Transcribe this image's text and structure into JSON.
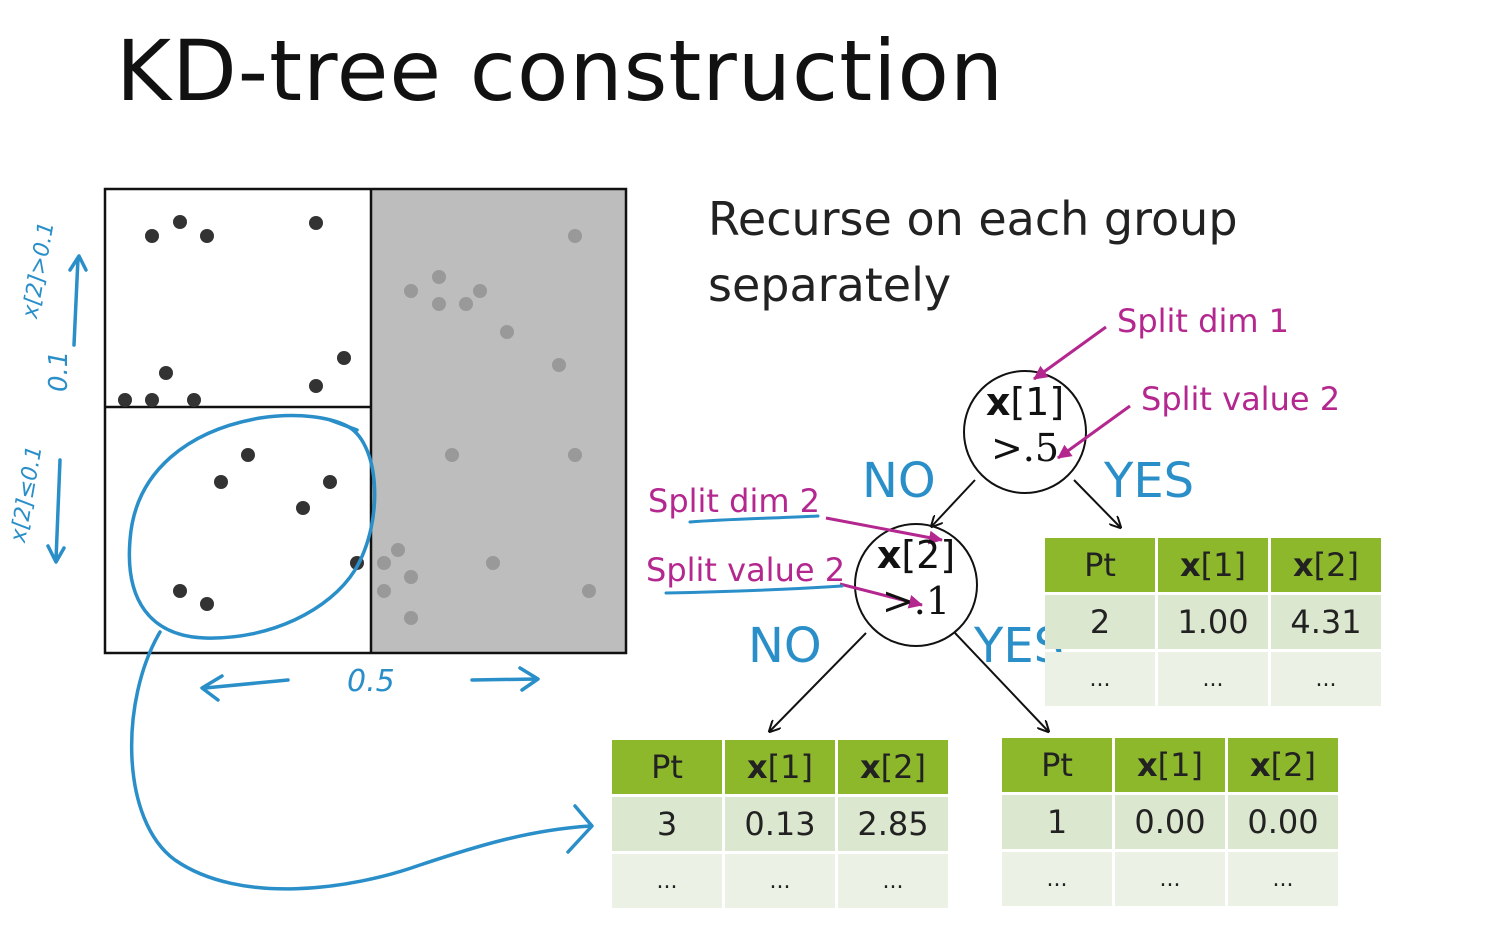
{
  "title": "KD-tree construction",
  "subtitle": "Recurse on each group separately",
  "annotations": {
    "split_dim_1": "Split dim 1",
    "split_value_top": "Split value 2",
    "split_dim_2": "Split dim 2",
    "split_value_2": "Split value 2",
    "no_top": "NO",
    "yes_top": "YES",
    "no_bottom": "NO",
    "yes_bottom": "YES"
  },
  "handwriting": {
    "x_split": "0.5",
    "y_split": "0.1",
    "upper_label": "x[2]>0.1",
    "lower_label": "x[2]≤0.1"
  },
  "nodes": {
    "root": {
      "var": "x",
      "index": "[1]",
      "threshold": ">.5"
    },
    "child": {
      "var": "x",
      "index": "[2]",
      "threshold": ">.1"
    }
  },
  "tables": {
    "right": {
      "headers": [
        {
          "bold": "",
          "rest": "Pt"
        },
        {
          "bold": "x",
          "rest": "[1]"
        },
        {
          "bold": "x",
          "rest": "[2]"
        }
      ],
      "rows": [
        [
          "2",
          "1.00",
          "4.31"
        ],
        [
          "...",
          "...",
          "..."
        ]
      ]
    },
    "bottom_left": {
      "headers": [
        {
          "bold": "",
          "rest": "Pt"
        },
        {
          "bold": "x",
          "rest": "[1]"
        },
        {
          "bold": "x",
          "rest": "[2]"
        }
      ],
      "rows": [
        [
          "3",
          "0.13",
          "2.85"
        ],
        [
          "...",
          "...",
          "..."
        ]
      ]
    },
    "bottom_right": {
      "headers": [
        {
          "bold": "",
          "rest": "Pt"
        },
        {
          "bold": "x",
          "rest": "[1]"
        },
        {
          "bold": "x",
          "rest": "[2]"
        }
      ],
      "rows": [
        [
          "1",
          "0.00",
          "0.00"
        ],
        [
          "...",
          "...",
          "..."
        ]
      ]
    }
  },
  "colors": {
    "header_green": "#8db82c",
    "row_light": "#dce7cf",
    "row_lighter": "#ebf1e4",
    "annotation_magenta": "#b3278f",
    "annotation_blue": "#2a8fc9",
    "shaded_region": "#bdbdbd"
  }
}
